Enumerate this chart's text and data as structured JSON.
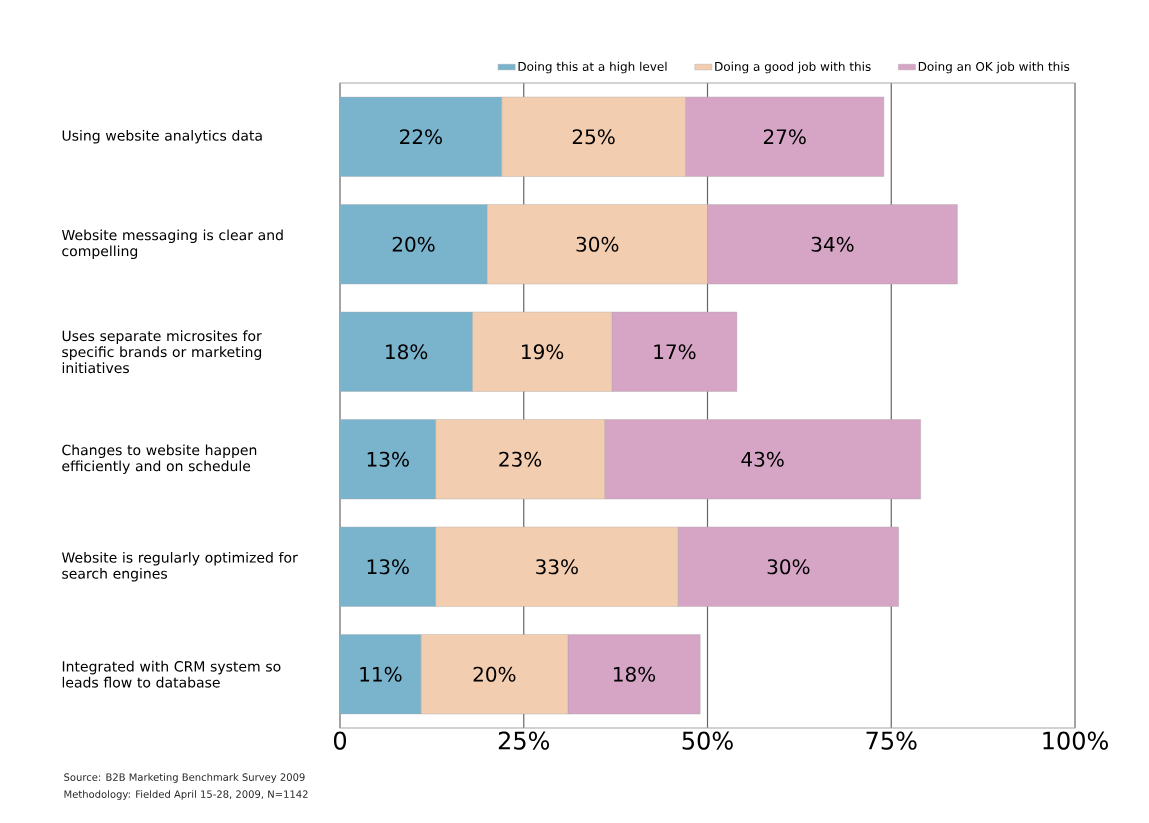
{
  "chart_data": {
    "type": "bar",
    "orientation": "horizontal",
    "stacked": true,
    "categories": [
      "Using website analytics data",
      "Website messaging is clear and compelling",
      "Uses separate microsites for specific brands or marketing initiatives",
      "Changes to website happen efficiently and on schedule",
      "Website is regularly optimized for search engines",
      "Integrated with CRM system so leads flow to database"
    ],
    "series": [
      {
        "name": "Doing this at a high level",
        "color": "#7ab3cc",
        "values": [
          22,
          20,
          18,
          13,
          13,
          11
        ],
        "value_labels": [
          "22%",
          "20%",
          "18%",
          "13%",
          "13%",
          "11%"
        ]
      },
      {
        "name": "Doing a good job with this",
        "color": "#f3cdb0",
        "values": [
          25,
          30,
          19,
          23,
          33,
          20
        ],
        "value_labels": [
          "25%",
          "30%",
          "19%",
          "23%",
          "33%",
          "20%"
        ]
      },
      {
        "name": "Doing an OK job with this",
        "color": "#d6a5c6",
        "values": [
          27,
          34,
          17,
          43,
          30,
          18
        ],
        "value_labels": [
          "27%",
          "34%",
          "17%",
          "43%",
          "30%",
          "18%"
        ]
      }
    ],
    "xlim": [
      0,
      100
    ],
    "xticks": [
      0,
      {
        "value": 25,
        "label": "25%"
      },
      {
        "value": 50,
        "label": "50%"
      },
      {
        "value": 75,
        "label": "75%"
      },
      {
        "value": 100,
        "label": "100%"
      }
    ],
    "grid": "x",
    "legend": "top right",
    "annotations": [
      "Source: B2B Marketing Benchmark Survey 2009",
      "Methodology: Fielded April 15-28, 2009, N=1142"
    ]
  }
}
